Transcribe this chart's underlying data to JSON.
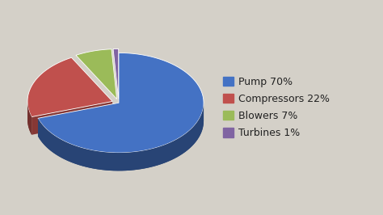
{
  "labels": [
    "Pump 70%",
    "Compressors 22%",
    "Blowers 7%",
    "Turbines 1%"
  ],
  "values": [
    70,
    22,
    7,
    1
  ],
  "colors": [
    "#4472C4",
    "#C0504D",
    "#9BBB59",
    "#8064A2"
  ],
  "explode": [
    0.0,
    0.08,
    0.08,
    0.08
  ],
  "startangle": 90,
  "background_color": "#D4D0C8",
  "legend_fontsize": 9
}
